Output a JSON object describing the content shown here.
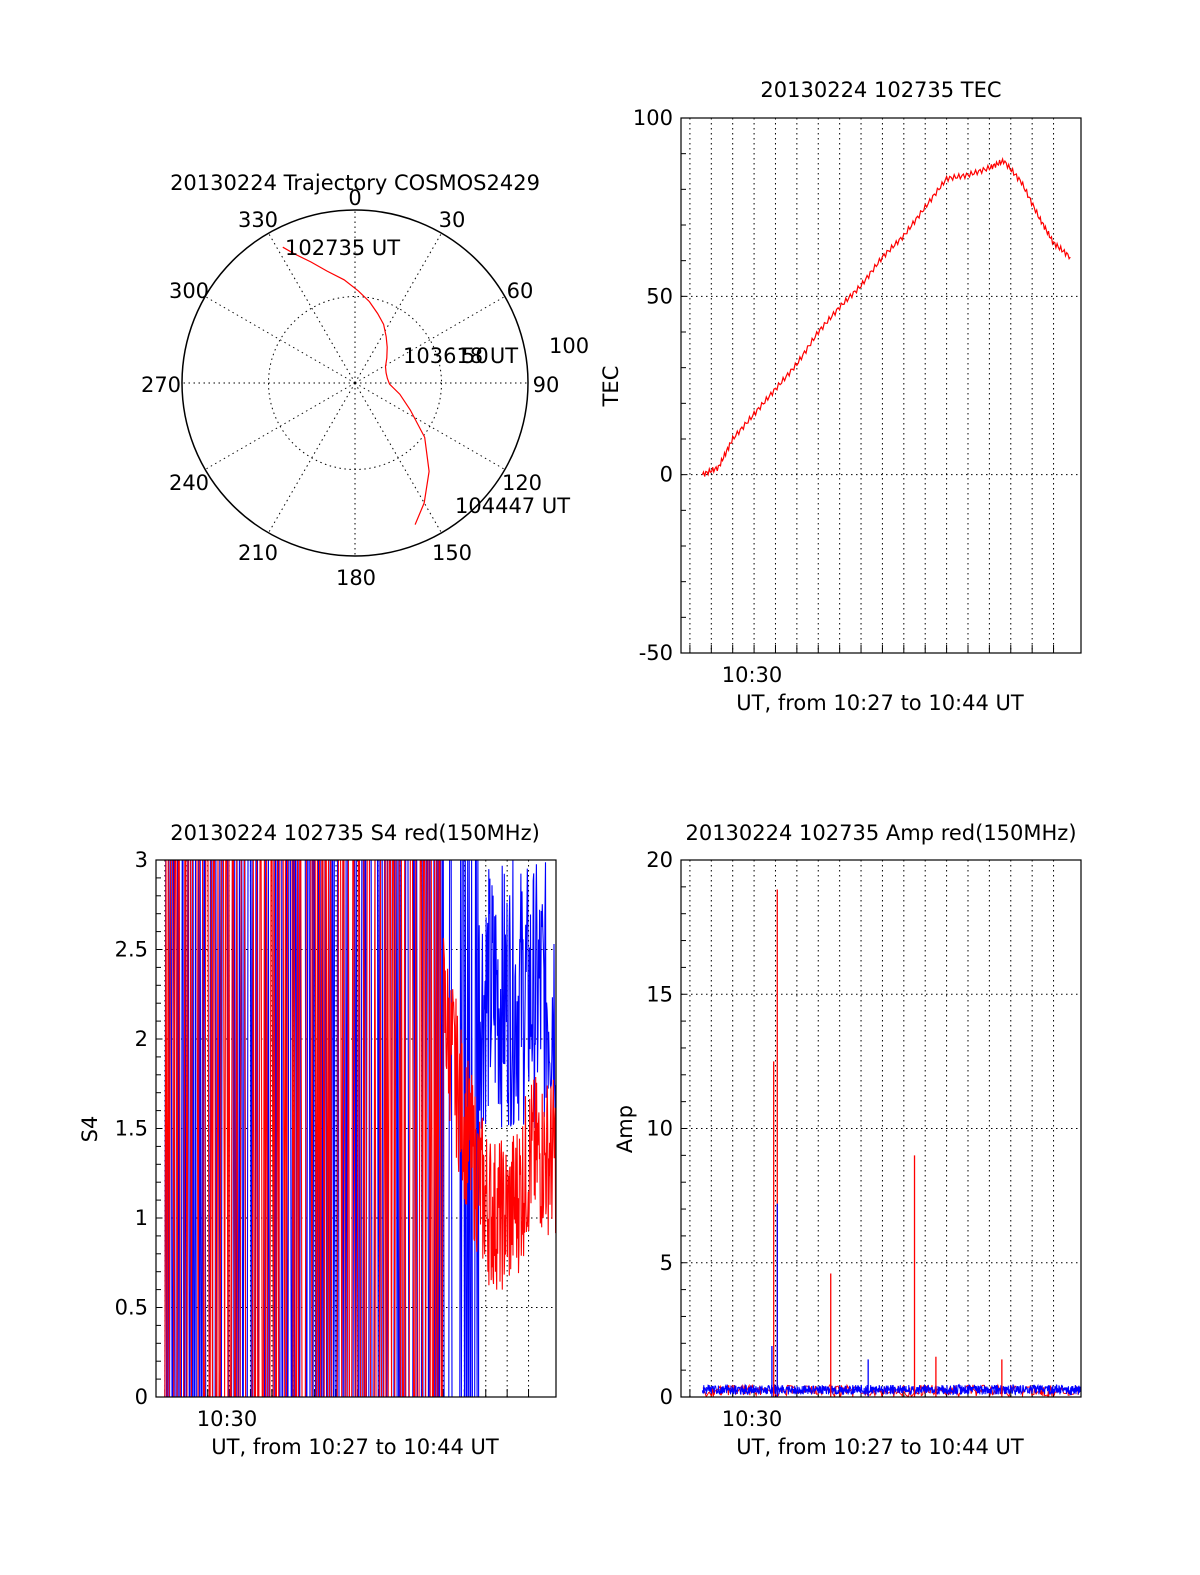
{
  "colors": {
    "red": "#ff0000",
    "blue": "#0000ff"
  },
  "chart_data": [
    {
      "type": "polar",
      "title": "20130224 Trajectory COSMOS2429",
      "azimuth_labels": [
        "0",
        "30",
        "60",
        "90",
        "120",
        "150",
        "180",
        "210",
        "240",
        "270",
        "300",
        "330"
      ],
      "radius_labels": [
        "50",
        "100"
      ],
      "start_label": "102735 UT",
      "mid_label": "103618 UT",
      "end_label": "104447 UT",
      "trajectory": {
        "azimuth_deg": [
          332,
          335,
          340,
          346,
          354,
          2,
          10,
          18,
          26,
          34,
          42,
          52,
          62,
          72,
          82,
          92,
          104,
          116,
          128,
          140,
          150,
          157
        ],
        "zenith_deg": [
          80,
          74,
          67,
          60,
          54,
          48,
          43,
          38,
          34,
          29,
          25,
          21,
          18,
          17,
          17,
          18,
          24,
          32,
          46,
          60,
          72,
          80
        ]
      }
    },
    {
      "type": "line",
      "title": "20130224 102735 TEC",
      "xlabel": "UT, from 10:27 to 10:44 UT",
      "ylabel": "TEC",
      "x_tick_label": "10:30",
      "y_ticks": [
        "-50",
        "0",
        "50",
        "100"
      ],
      "ylim": [
        -50,
        100
      ],
      "xlim": [
        "10:26:35",
        "10:45:17"
      ],
      "grid": true,
      "series": [
        {
          "color": "red",
          "x": [
            "10:27:35",
            "10:28:20",
            "10:29:00",
            "10:30:00",
            "10:31:00",
            "10:32:00",
            "10:33:00",
            "10:34:00",
            "10:35:00",
            "10:36:00",
            "10:37:00",
            "10:38:00",
            "10:39:00",
            "10:40:00",
            "10:41:00",
            "10:41:40",
            "10:42:30",
            "10:43:20",
            "10:44:00",
            "10:44:47"
          ],
          "y": [
            0,
            2,
            10,
            17,
            24,
            31,
            40,
            47,
            53,
            61,
            67,
            75,
            83,
            84,
            86,
            88,
            82,
            72,
            65,
            61
          ]
        }
      ]
    },
    {
      "type": "line",
      "title": "20130224 102735 S4 red(150MHz)",
      "xlabel": "UT, from 10:27 to 10:44 UT",
      "ylabel": "S4",
      "x_tick_label": "10:30",
      "y_ticks": [
        "0",
        "0.5",
        "1",
        "1.5",
        "2",
        "2.5",
        "3"
      ],
      "ylim": [
        0,
        3
      ],
      "xlim": [
        "10:26:35",
        "10:45:17"
      ],
      "grid": true,
      "series": [
        {
          "color": "red",
          "description_values": "saturated 0-3 until ~10:40, then 0.7-2.4 decreasing"
        },
        {
          "color": "blue",
          "description_values": "saturated 0-3 until ~10:42, then 1.5-3"
        }
      ]
    },
    {
      "type": "line",
      "title": "20130224 102735 Amp red(150MHz)",
      "xlabel": "UT, from 10:27 to 10:44 UT",
      "ylabel": "Amp",
      "x_tick_label": "10:30",
      "y_ticks": [
        "0",
        "5",
        "10",
        "15",
        "20"
      ],
      "ylim": [
        0,
        20
      ],
      "xlim": [
        "10:26:35",
        "10:45:17"
      ],
      "grid": true,
      "spikes": [
        {
          "color": "red",
          "x": "10:30:55",
          "y": 12.5
        },
        {
          "color": "red",
          "x": "10:31:05",
          "y": 18.9
        },
        {
          "color": "blue",
          "x": "10:31:05",
          "y": 7.2
        },
        {
          "color": "red",
          "x": "10:33:35",
          "y": 4.6
        },
        {
          "color": "red",
          "x": "10:37:30",
          "y": 9.0
        },
        {
          "color": "red",
          "x": "10:38:30",
          "y": 1.5
        },
        {
          "color": "red",
          "x": "10:41:35",
          "y": 1.4
        },
        {
          "color": "blue",
          "x": "10:35:20",
          "y": 1.4
        },
        {
          "color": "blue",
          "x": "10:30:50",
          "y": 1.9
        }
      ],
      "baseline": 0.3
    }
  ]
}
